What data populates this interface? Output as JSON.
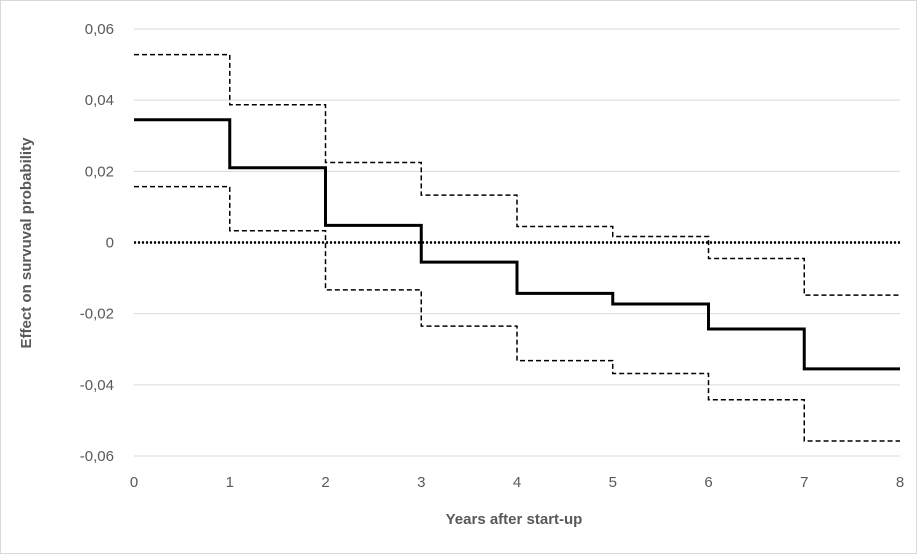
{
  "chart_data": {
    "type": "line",
    "step": true,
    "xlabel": "Years after start-up",
    "ylabel": "Effect on survuval probability",
    "xlim": [
      0,
      8
    ],
    "ylim": [
      -0.06,
      0.06
    ],
    "xticks": [
      0,
      1,
      2,
      3,
      4,
      5,
      6,
      7,
      8
    ],
    "xtick_labels": [
      "0",
      "1",
      "2",
      "3",
      "4",
      "5",
      "6",
      "7",
      "8"
    ],
    "yticks": [
      0.06,
      0.04,
      0.02,
      0,
      -0.02,
      -0.04,
      -0.06
    ],
    "ytick_labels": [
      "0,06",
      "0,04",
      "0,02",
      "0",
      "-0,02",
      "-0,04",
      "-0,06"
    ],
    "grid": "horizontal",
    "legend": "none",
    "series": [
      {
        "style": "solid",
        "color": "#000000",
        "x": [
          0,
          1,
          2,
          3,
          4,
          5,
          6,
          7
        ],
        "values": [
          0.0345,
          0.021,
          0.0048,
          -0.0055,
          -0.0143,
          -0.0173,
          -0.0243,
          -0.0355
        ]
      },
      {
        "style": "dashed",
        "color": "#000000",
        "x": [
          0,
          1,
          2,
          3,
          4,
          5,
          6,
          7
        ],
        "values": [
          0.0528,
          0.0387,
          0.0225,
          0.0133,
          0.0045,
          0.0017,
          -0.0045,
          -0.0148
        ]
      },
      {
        "style": "dashed",
        "color": "#000000",
        "x": [
          0,
          1,
          2,
          3,
          4,
          5,
          6,
          7
        ],
        "values": [
          0.0157,
          0.0033,
          -0.0133,
          -0.0235,
          -0.0332,
          -0.0368,
          -0.0442,
          -0.0558
        ]
      },
      {
        "style": "dotted",
        "color": "#000000",
        "x": [
          0,
          8
        ],
        "values": [
          0,
          0
        ]
      }
    ]
  }
}
